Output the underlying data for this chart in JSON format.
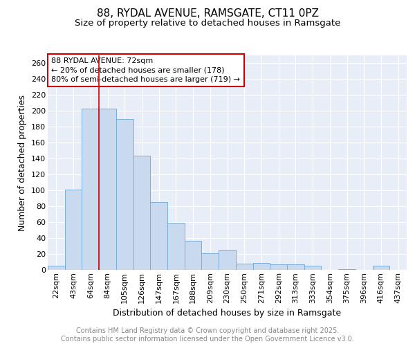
{
  "title1": "88, RYDAL AVENUE, RAMSGATE, CT11 0PZ",
  "title2": "Size of property relative to detached houses in Ramsgate",
  "xlabel": "Distribution of detached houses by size in Ramsgate",
  "ylabel": "Number of detached properties",
  "categories": [
    "22sqm",
    "43sqm",
    "64sqm",
    "84sqm",
    "105sqm",
    "126sqm",
    "147sqm",
    "167sqm",
    "188sqm",
    "209sqm",
    "230sqm",
    "250sqm",
    "271sqm",
    "292sqm",
    "313sqm",
    "333sqm",
    "354sqm",
    "375sqm",
    "396sqm",
    "416sqm",
    "437sqm"
  ],
  "values": [
    5,
    101,
    203,
    203,
    190,
    144,
    85,
    59,
    37,
    21,
    25,
    8,
    9,
    7,
    7,
    5,
    0,
    1,
    0,
    5,
    0
  ],
  "bar_color": "#c9daef",
  "bar_edge_color": "#7aadd9",
  "bar_edge_width": 0.7,
  "ylim": [
    0,
    270
  ],
  "yticks": [
    0,
    20,
    40,
    60,
    80,
    100,
    120,
    140,
    160,
    180,
    200,
    220,
    240,
    260
  ],
  "red_line_x": 2.5,
  "red_line_color": "#cc0000",
  "annotation_text": "88 RYDAL AVENUE: 72sqm\n← 20% of detached houses are smaller (178)\n80% of semi-detached houses are larger (719) →",
  "bg_color": "#e8eef7",
  "footer_text": "Contains HM Land Registry data © Crown copyright and database right 2025.\nContains public sector information licensed under the Open Government Licence v3.0.",
  "title_fontsize": 11,
  "subtitle_fontsize": 9.5,
  "axis_label_fontsize": 9,
  "tick_fontsize": 8,
  "annotation_fontsize": 8,
  "footer_fontsize": 7
}
